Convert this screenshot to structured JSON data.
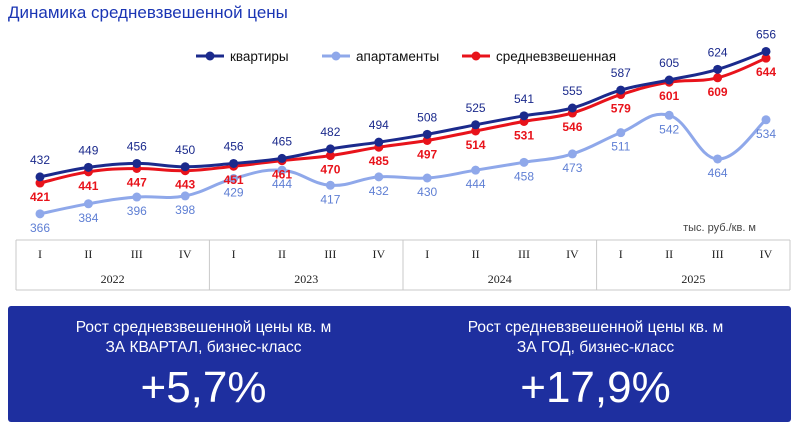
{
  "header": {
    "title": "Динамика средневзвешенной цены"
  },
  "chart_data": {
    "type": "line",
    "title": "Динамика средневзвешенной цены",
    "unit_label": "тыс. руб./кв. м",
    "legend_position": "top-right",
    "quarters": [
      "I",
      "II",
      "III",
      "IV",
      "I",
      "II",
      "III",
      "IV",
      "I",
      "II",
      "III",
      "IV",
      "I",
      "II",
      "III",
      "IV"
    ],
    "years": [
      "2022",
      "2023",
      "2024",
      "2025"
    ],
    "ylim": [
      330,
      680
    ],
    "series": [
      {
        "name": "квартиры",
        "color": "#1b2a8c",
        "label_color": "#1b2a8c",
        "label_pos": "above",
        "bold": false,
        "values": [
          432,
          449,
          456,
          450,
          456,
          465,
          482,
          494,
          508,
          525,
          541,
          555,
          587,
          605,
          624,
          656
        ]
      },
      {
        "name": "апартаменты",
        "color": "#8fa8ea",
        "label_color": "#5f7fd4",
        "label_pos": "below",
        "bold": false,
        "values": [
          366,
          384,
          396,
          398,
          429,
          444,
          417,
          432,
          430,
          444,
          458,
          473,
          511,
          542,
          464,
          534
        ]
      },
      {
        "name": "средневзвешенная",
        "color": "#e8131b",
        "label_color": "#e8131b",
        "label_pos": "below",
        "bold": true,
        "values": [
          421,
          441,
          447,
          443,
          451,
          461,
          470,
          485,
          497,
          514,
          531,
          546,
          579,
          601,
          609,
          644
        ]
      }
    ]
  },
  "kpis": [
    {
      "line1": "Рост средневзвешенной цены кв. м",
      "line2": "ЗА КВАРТАЛ, бизнес-класс",
      "value": "+5,7%"
    },
    {
      "line1": "Рост средневзвешенной цены кв. м",
      "line2": "ЗА ГОД, бизнес-класс",
      "value": "+17,9%"
    }
  ]
}
